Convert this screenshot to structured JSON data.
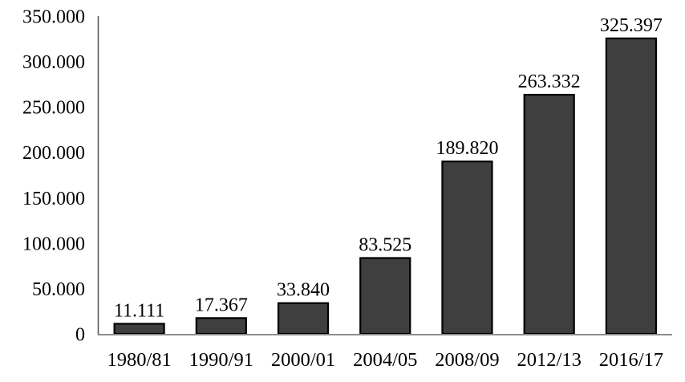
{
  "chart_data": {
    "type": "bar",
    "title": "",
    "xlabel": "",
    "ylabel": "",
    "categories": [
      "1980/81",
      "1990/91",
      "2000/01",
      "2004/05",
      "2008/09",
      "2012/13",
      "2016/17"
    ],
    "values": [
      11111,
      17367,
      33840,
      83525,
      189820,
      263332,
      325397
    ],
    "value_labels": [
      "11.111",
      "17.367",
      "33.840",
      "83.525",
      "189.820",
      "263.332",
      "325.397"
    ],
    "y_ticks": [
      0,
      50000,
      100000,
      150000,
      200000,
      250000,
      300000,
      350000
    ],
    "y_tick_labels": [
      "0",
      "50.000",
      "100.000",
      "150.000",
      "200.000",
      "250.000",
      "300.000",
      "350.000"
    ],
    "ylim": [
      0,
      350000
    ],
    "grid": false,
    "legend_position": "none",
    "colors": {
      "bar_fill": "#3f3f3f",
      "bar_border": "#000000",
      "y_axis_line": "#595959",
      "baseline": "#8c8c8c",
      "text": "#000000"
    }
  }
}
